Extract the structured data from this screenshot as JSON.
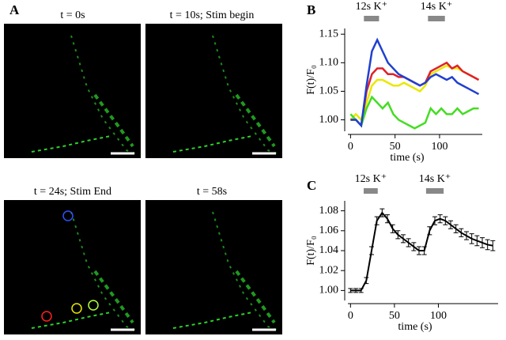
{
  "panel_labels": [
    "A",
    "B",
    "C"
  ],
  "images": [
    {
      "caption": "t = 0s"
    },
    {
      "caption": "t = 10s; Stim begin"
    },
    {
      "caption": "t = 24s; Stim End"
    },
    {
      "caption": "t = 58s"
    }
  ],
  "chart_data": [
    {
      "type": "line",
      "xlabel": "time (s)",
      "ylabel": "F(t)/F₀",
      "xlim": [
        -3,
        148
      ],
      "ylim": [
        0.98,
        1.16
      ],
      "xticks": [
        0,
        50,
        100
      ],
      "yticks": [
        {
          "value": 1.0,
          "label": "1.00"
        },
        {
          "value": 1.05,
          "label": "1.05"
        },
        {
          "value": 1.1,
          "label": "1.10"
        },
        {
          "value": 1.15,
          "label": "1.15"
        }
      ],
      "stim": [
        {
          "label": "12s K⁺",
          "start": 15,
          "end": 32
        },
        {
          "label": "14s K⁺",
          "start": 87,
          "end": 106
        }
      ],
      "x": [
        0,
        6,
        12,
        18,
        24,
        30,
        36,
        42,
        48,
        54,
        60,
        66,
        72,
        78,
        84,
        90,
        96,
        102,
        108,
        114,
        120,
        126,
        132,
        138,
        144
      ],
      "series": [
        {
          "color": "#e8e800",
          "values": [
            1.0,
            1.01,
            1.0,
            1.03,
            1.06,
            1.07,
            1.07,
            1.065,
            1.06,
            1.06,
            1.065,
            1.06,
            1.055,
            1.05,
            1.06,
            1.08,
            1.085,
            1.09,
            1.095,
            1.09,
            1.09,
            1.085,
            1.08,
            1.075,
            1.07
          ]
        },
        {
          "color": "#e0202a",
          "values": [
            1.0,
            1.0,
            0.99,
            1.05,
            1.08,
            1.09,
            1.09,
            1.08,
            1.08,
            1.075,
            1.075,
            1.07,
            1.065,
            1.06,
            1.065,
            1.085,
            1.09,
            1.095,
            1.1,
            1.09,
            1.095,
            1.085,
            1.08,
            1.075,
            1.07
          ]
        },
        {
          "color": "#44dd22",
          "values": [
            1.01,
            1.0,
            0.99,
            1.02,
            1.04,
            1.03,
            1.02,
            1.03,
            1.01,
            1.0,
            0.995,
            0.99,
            0.985,
            0.99,
            0.995,
            1.02,
            1.01,
            1.02,
            1.01,
            1.01,
            1.02,
            1.01,
            1.015,
            1.02,
            1.02
          ]
        },
        {
          "color": "#2040d0",
          "values": [
            1.0,
            1.0,
            0.99,
            1.06,
            1.12,
            1.14,
            1.12,
            1.1,
            1.09,
            1.08,
            1.075,
            1.07,
            1.065,
            1.06,
            1.065,
            1.075,
            1.08,
            1.075,
            1.07,
            1.075,
            1.065,
            1.06,
            1.055,
            1.05,
            1.045
          ]
        }
      ]
    },
    {
      "type": "errorbar",
      "xlabel": "time (s)",
      "ylabel": "F(t)/F₀",
      "xlim": [
        -3,
        168
      ],
      "ylim": [
        0.99,
        1.09
      ],
      "xticks": [
        0,
        50,
        100
      ],
      "yticks": [
        {
          "value": 1.0,
          "label": "1.00"
        },
        {
          "value": 1.02,
          "label": "1.02"
        },
        {
          "value": 1.04,
          "label": "1.04"
        },
        {
          "value": 1.06,
          "label": "1.06"
        },
        {
          "value": 1.08,
          "label": "1.08"
        }
      ],
      "stim": [
        {
          "label": "12s K⁺",
          "start": 15,
          "end": 31
        },
        {
          "label": "14s K⁺",
          "start": 86,
          "end": 106
        }
      ],
      "color": "#000000",
      "x": [
        0,
        6,
        12,
        18,
        24,
        30,
        36,
        42,
        48,
        54,
        60,
        66,
        72,
        78,
        84,
        90,
        96,
        102,
        108,
        114,
        120,
        126,
        132,
        138,
        144,
        150,
        156,
        162
      ],
      "values": [
        1.0,
        1.0,
        1.0,
        1.01,
        1.04,
        1.07,
        1.078,
        1.072,
        1.062,
        1.056,
        1.052,
        1.048,
        1.044,
        1.04,
        1.04,
        1.06,
        1.07,
        1.072,
        1.07,
        1.066,
        1.062,
        1.058,
        1.055,
        1.052,
        1.05,
        1.048,
        1.046,
        1.045
      ],
      "errors": [
        0.002,
        0.002,
        0.002,
        0.003,
        0.004,
        0.004,
        0.004,
        0.004,
        0.004,
        0.004,
        0.004,
        0.004,
        0.004,
        0.004,
        0.004,
        0.004,
        0.004,
        0.004,
        0.004,
        0.004,
        0.004,
        0.004,
        0.004,
        0.005,
        0.005,
        0.005,
        0.005,
        0.005
      ]
    }
  ]
}
